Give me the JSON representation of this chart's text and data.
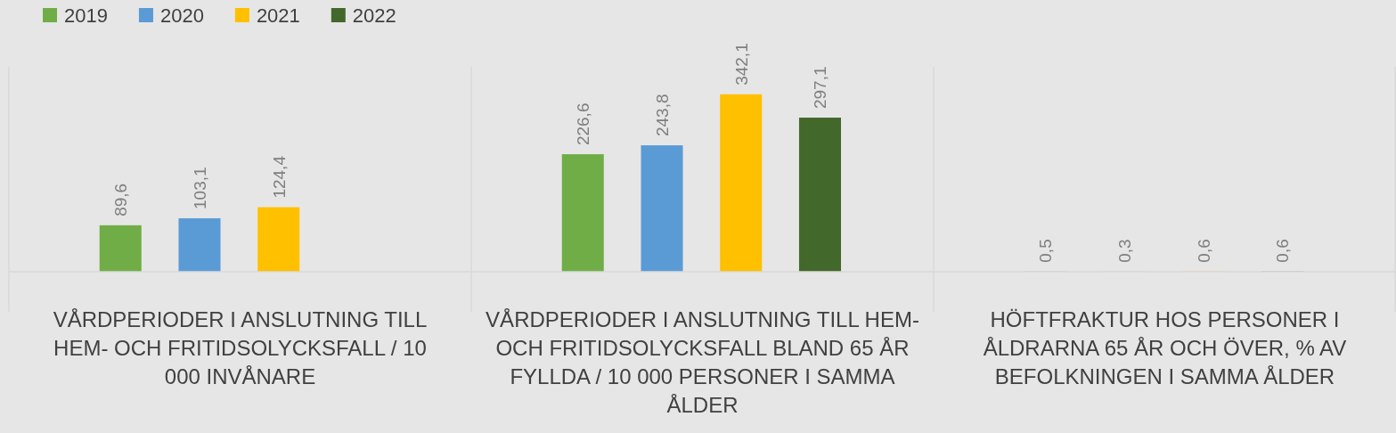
{
  "chart_data": {
    "type": "bar",
    "categories": [
      "VÅRDPERIODER I ANSLUTNING TILL HEM- OCH FRITIDSOLYCKSFALL / 10 000 INVÅNARE",
      "VÅRDPERIODER I ANSLUTNING TILL HEM- OCH FRITIDSOLYCKSFALL BLAND 65 ÅR FYLLDA / 10 000 PERSONER I SAMMA ÅLDER",
      "HÖFTFRAKTUR HOS PERSONER I ÅLDRARNA 65 ÅR OCH ÖVER, % AV BEFOLKNINGEN I SAMMA ÅLDER"
    ],
    "series": [
      {
        "name": "2019",
        "color": "#70ad47",
        "values": [
          89.6,
          226.6,
          0.5
        ],
        "value_labels": [
          "89,6",
          "226,6",
          "0,5"
        ]
      },
      {
        "name": "2020",
        "color": "#5b9bd5",
        "values": [
          103.1,
          243.8,
          0.3
        ],
        "value_labels": [
          "103,1",
          "243,8",
          "0,3"
        ]
      },
      {
        "name": "2021",
        "color": "#ffc000",
        "values": [
          124.4,
          342.1,
          0.6
        ],
        "value_labels": [
          "124,4",
          "342,1",
          "0,6"
        ]
      },
      {
        "name": "2022",
        "color": "#43682b",
        "values": [
          null,
          297.1,
          0.6
        ],
        "value_labels": [
          null,
          "297,1",
          "0,6"
        ]
      }
    ],
    "legend": "top left",
    "grid": "x"
  }
}
